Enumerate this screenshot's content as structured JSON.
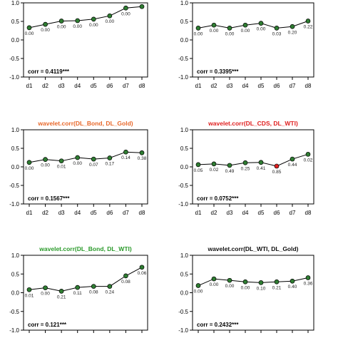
{
  "chart_data": [
    {
      "type": "line",
      "title": "",
      "title_color": "",
      "x": [
        "d1",
        "d2",
        "d3",
        "d4",
        "d5",
        "d6",
        "d7",
        "d8"
      ],
      "values": [
        0.33,
        0.42,
        0.51,
        0.52,
        0.56,
        0.65,
        0.86,
        0.9
      ],
      "point_labels": [
        "0.00",
        "0.00",
        "0.00",
        "0.00",
        "0.00",
        "0.00",
        "0.00",
        ""
      ],
      "highlight_index": null,
      "ylim": [
        -1.0,
        1.0
      ],
      "yticks": [
        "-1.0",
        "-0.5",
        "0.0",
        "0.5",
        "1.0"
      ],
      "corr_label": "corr = 0.4119***",
      "show_x_ticks": true
    },
    {
      "type": "line",
      "title": "",
      "title_color": "",
      "x": [
        "d1",
        "d2",
        "d3",
        "d4",
        "d5",
        "d6",
        "d7",
        "d8"
      ],
      "values": [
        0.32,
        0.4,
        0.32,
        0.4,
        0.45,
        0.32,
        0.36,
        0.51
      ],
      "point_labels": [
        "0.00",
        "0.00",
        "0.00",
        "0.00",
        "0.00",
        "0.03",
        "0.20",
        "0.22"
      ],
      "highlight_index": null,
      "ylim": [
        -1.0,
        1.0
      ],
      "yticks": [
        "-1.0",
        "-0.5",
        "0.0",
        "0.5",
        "1.0"
      ],
      "corr_label": "corr = 0.3395***",
      "show_x_ticks": true
    },
    {
      "type": "line",
      "title": "wavelet.corr(DL_Bond, DL_Gold)",
      "title_color": "#e8682a",
      "x": [
        "d1",
        "d2",
        "d3",
        "d4",
        "d5",
        "d6",
        "d7",
        "d8"
      ],
      "values": [
        0.12,
        0.2,
        0.16,
        0.25,
        0.21,
        0.24,
        0.4,
        0.38
      ],
      "point_labels": [
        "0.00",
        "0.00",
        "0.01",
        "0.00",
        "0.07",
        "0.17",
        "0.14",
        "0.38"
      ],
      "highlight_index": null,
      "ylim": [
        -1.0,
        1.0
      ],
      "yticks": [
        "-1.0",
        "-0.5",
        "0.0",
        "0.5",
        "1.0"
      ],
      "corr_label": "corr = 0.1567***",
      "show_x_ticks": true
    },
    {
      "type": "line",
      "title": "wavelet.corr(DL_CDS, DL_WTI)",
      "title_color": "#e02020",
      "x": [
        "d1",
        "d2",
        "d3",
        "d4",
        "d5",
        "d6",
        "d7",
        "d8"
      ],
      "values": [
        0.06,
        0.08,
        0.04,
        0.11,
        0.12,
        0.02,
        0.21,
        0.34
      ],
      "point_labels": [
        "0.05",
        "0.02",
        "0.49",
        "0.25",
        "0.41",
        "0.85",
        "0.44",
        "0.02"
      ],
      "highlight_index": 5,
      "ylim": [
        -1.0,
        1.0
      ],
      "yticks": [
        "-1.0",
        "-0.5",
        "0.0",
        "0.5",
        "1.0"
      ],
      "corr_label": "corr = 0.0752***",
      "show_x_ticks": true
    },
    {
      "type": "line",
      "title": "wavelet.corr(DL_Bond, DL_WTI)",
      "title_color": "#2a9a2a",
      "x": [
        "d1",
        "d2",
        "d3",
        "d4",
        "d5",
        "d6",
        "d7",
        "d8"
      ],
      "values": [
        0.08,
        0.13,
        0.04,
        0.14,
        0.17,
        0.17,
        0.45,
        0.68
      ],
      "point_labels": [
        "0.01",
        "0.00",
        "0.21",
        "0.11",
        "0.08",
        "0.24",
        "0.08",
        "0.06"
      ],
      "highlight_index": null,
      "ylim": [
        -1.0,
        1.0
      ],
      "yticks": [
        "-1.0",
        "-0.5",
        "0.0",
        "0.5",
        "1.0"
      ],
      "corr_label": "corr = 0.121***",
      "show_x_ticks": false
    },
    {
      "type": "line",
      "title": "wavelet.corr(DL_WTI, DL_Gold)",
      "title_color": "#111111",
      "x": [
        "d1",
        "d2",
        "d3",
        "d4",
        "d5",
        "d6",
        "d7",
        "d8"
      ],
      "values": [
        0.19,
        0.37,
        0.33,
        0.29,
        0.27,
        0.29,
        0.31,
        0.4
      ],
      "point_labels": [
        "0.00",
        "0.00",
        "0.00",
        "0.00",
        "0.10",
        "0.21",
        "0.40",
        "0.36"
      ],
      "highlight_index": null,
      "ylim": [
        -1.0,
        1.0
      ],
      "yticks": [
        "-1.0",
        "-0.5",
        "0.0",
        "0.5",
        "1.0"
      ],
      "corr_label": "corr = 0.2432***",
      "show_x_ticks": false
    }
  ],
  "colors": {
    "point_fill": "#2f7d32",
    "point_highlight": "#e02020",
    "line": "#000000",
    "axis": "#000000"
  }
}
